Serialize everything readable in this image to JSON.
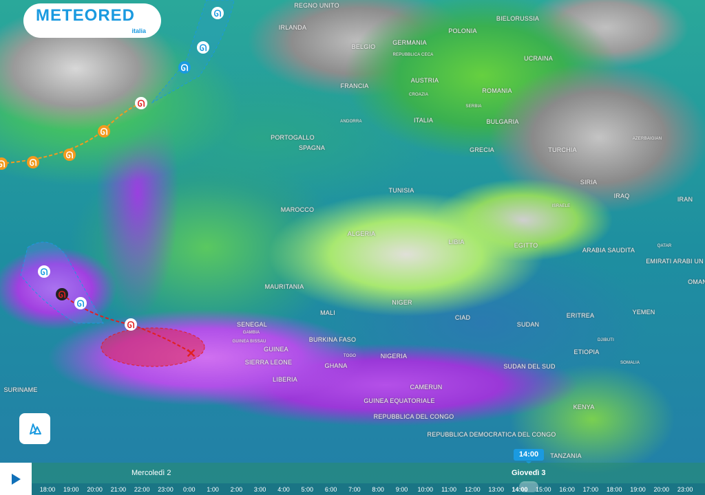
{
  "brand": {
    "name": "METEORED",
    "sub": "italia",
    "color": "#1a9ae0"
  },
  "countries": [
    "REGNO UNITO",
    "IRLANDA",
    "BELGIO",
    "GERMANIA",
    "POLONIA",
    "BIELORUSSIA",
    "UCRAINA",
    "FRANCIA",
    "AUSTRIA",
    "ROMANIA",
    "PORTOGALLO",
    "SPAGNA",
    "ITALIA",
    "BULGARIA",
    "GRECIA",
    "TURCHIA",
    "SIRIA",
    "IRAQ",
    "IRAN",
    "TUNISIA",
    "MAROCCO",
    "ALGERIA",
    "LIBIA",
    "EGITTO",
    "ARABIA SAUDITA",
    "EMIRATI ARABI UN",
    "OMAN",
    "MAURITANIA",
    "MALI",
    "NIGER",
    "CIAD",
    "SUDAN",
    "ERITREA",
    "YEMEN",
    "SENEGAL",
    "BURKINA FASO",
    "GUINEA",
    "SIERRA LEONE",
    "GHANA",
    "NIGERIA",
    "ETIOPIA",
    "SUDAN DEL SUD",
    "LIBERIA",
    "CAMERUN",
    "GUINEA EQUATORIALE",
    "REPUBBLICA DEL CONGO",
    "REPUBBLICA DEMOCRATICA DEL CONGO",
    "KENYA",
    "TANZANIA",
    "SURINAME"
  ],
  "small_countries": [
    "GAMBIA",
    "GUINEA BISSAU",
    "TOGO",
    "DJIBUTI",
    "SOMALIA",
    "ISRAELE",
    "QATAR",
    "AZERBAIGIAN",
    "CROAZIA",
    "SERBIA",
    "ANDORRA",
    "REPUBBLICA CECA"
  ],
  "storm_colors": {
    "blue": "#1a9ae0",
    "orange": "#f39a1e",
    "red": "#e02020"
  },
  "timeline": {
    "play_icon": "play-icon",
    "days": [
      "Mercoledì 2",
      "Giovedì 3"
    ],
    "hours": [
      "18:00",
      "19:00",
      "20:00",
      "21:00",
      "22:00",
      "23:00",
      "0:00",
      "1:00",
      "2:00",
      "3:00",
      "4:00",
      "5:00",
      "6:00",
      "7:00",
      "8:00",
      "9:00",
      "10:00",
      "11:00",
      "12:00",
      "13:00",
      "14:00",
      "15:00",
      "16:00",
      "17:00",
      "18:00",
      "19:00",
      "20:00",
      "23:00"
    ],
    "selected": "14:00"
  }
}
